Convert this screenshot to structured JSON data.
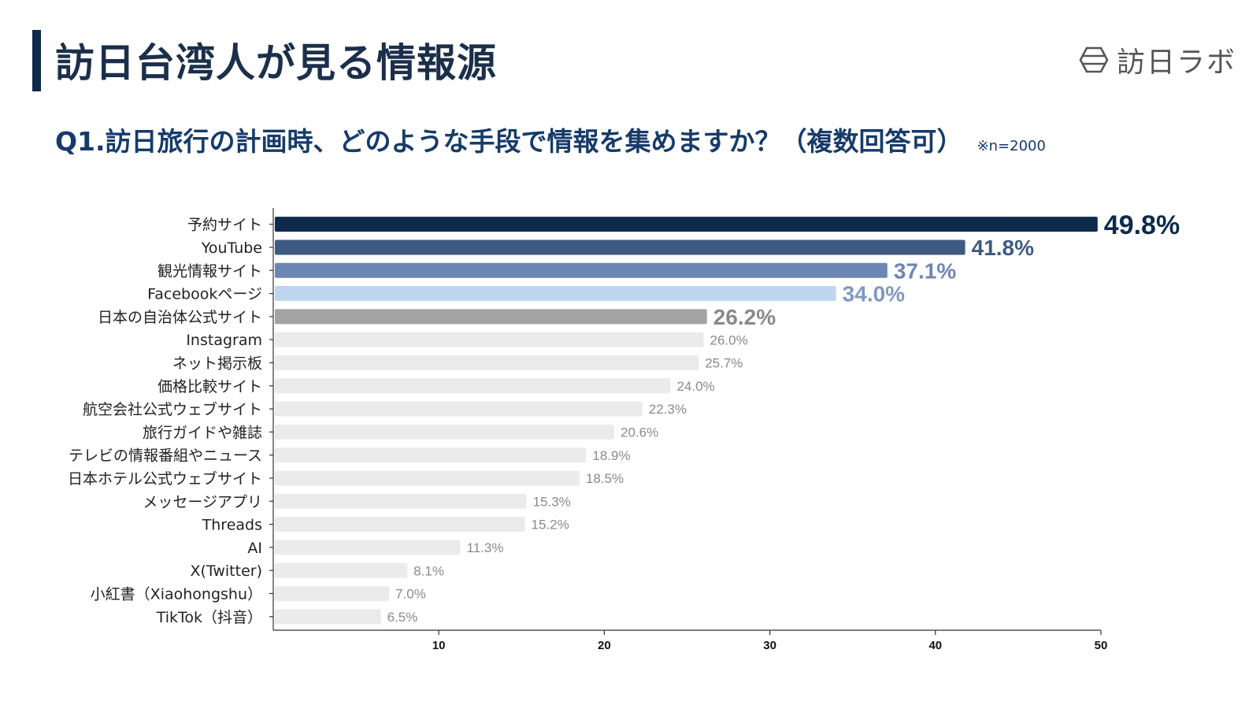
{
  "page": {
    "title": "訪日台湾人が見る情報源",
    "question": "Q1.訪日旅行の計画時、どのような手段で情報を集めますか？（複数回答可）",
    "note": "※n=2000",
    "logo_text": "訪日ラボ",
    "logo_icon": "hexagon-logo-icon",
    "title_bar_color": "#0d2a4b"
  },
  "chart_data": {
    "type": "bar",
    "orientation": "horizontal",
    "categories": [
      "予約サイト",
      "YouTube",
      "観光情報サイト",
      "Facebookページ",
      "日本の自治体公式サイト",
      "Instagram",
      "ネット掲示板",
      "価格比較サイト",
      "航空会社公式ウェブサイト",
      "旅行ガイドや雑誌",
      "テレビの情報番組やニュース",
      "日本ホテル公式ウェブサイト",
      "メッセージアプリ",
      "Threads",
      "AI",
      "X(Twitter)",
      "小紅書（Xiaohongshu）",
      "TikTok（抖音）"
    ],
    "values": [
      49.8,
      41.8,
      37.1,
      34.0,
      26.2,
      26.0,
      25.7,
      24.0,
      22.3,
      20.6,
      18.9,
      18.5,
      15.3,
      15.2,
      11.3,
      8.1,
      7.0,
      6.5
    ],
    "value_labels": [
      "49.8%",
      "41.8%",
      "37.1%",
      "34.0%",
      "26.2%",
      "26.0%",
      "25.7%",
      "24.0%",
      "22.3%",
      "20.6%",
      "18.9%",
      "18.5%",
      "15.3%",
      "15.2%",
      "11.3%",
      "8.1%",
      "7.0%",
      "6.5%"
    ],
    "bar_colors": [
      "#0d2a4b",
      "#3f5a82",
      "#6c87b3",
      "#bed6f0",
      "#a3a3a3",
      "#ebebeb",
      "#ebebeb",
      "#ebebeb",
      "#ebebeb",
      "#ebebeb",
      "#ebebeb",
      "#ebebeb",
      "#ebebeb",
      "#ebebeb",
      "#ebebeb",
      "#ebebeb",
      "#ebebeb",
      "#ebebeb"
    ],
    "label_colors": [
      "#0d2a4b",
      "#3f5a82",
      "#6c87b3",
      "#7f98c2",
      "#8a8a8a",
      "#8a8a8a",
      "#8a8a8a",
      "#8a8a8a",
      "#8a8a8a",
      "#8a8a8a",
      "#8a8a8a",
      "#8a8a8a",
      "#8a8a8a",
      "#8a8a8a",
      "#8a8a8a",
      "#8a8a8a",
      "#8a8a8a",
      "#8a8a8a"
    ],
    "x_ticks": [
      10,
      20,
      30,
      40,
      50
    ],
    "xlim": [
      0,
      50
    ],
    "title": "",
    "xlabel": "",
    "ylabel": "",
    "grid": false,
    "legend": "none"
  }
}
